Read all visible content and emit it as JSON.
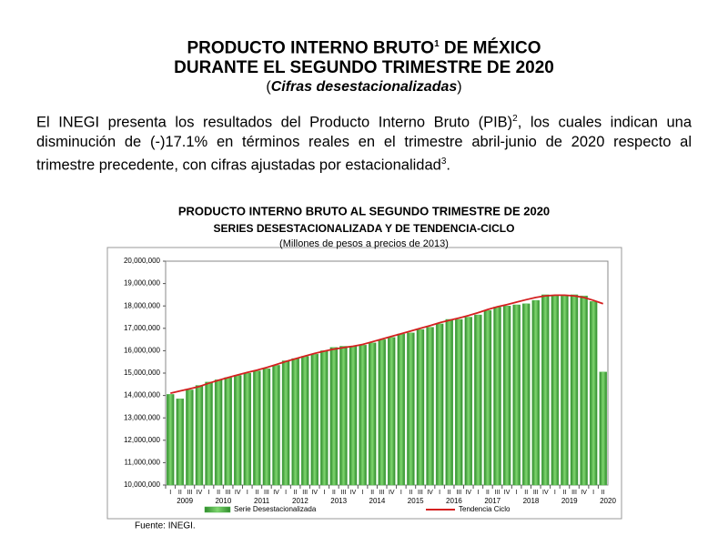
{
  "document": {
    "title_line1": "PRODUCTO INTERNO BRUTO",
    "title_sup": "1",
    "title_line1_end": " DE MÉXICO",
    "title_line2": "DURANTE EL SEGUNDO TRIMESTRE DE 2020",
    "subtitle_open": "(",
    "subtitle": "Cifras desestacionalizadas",
    "subtitle_close": ")",
    "paragraph_part1": "El INEGI presenta los resultados del Producto Interno Bruto (PIB)",
    "paragraph_sup1": "2",
    "paragraph_part2": ", los cuales indican una disminución de (-)17.1% en términos reales en el trimestre abril-junio de 2020 respecto al trimestre precedente, con cifras ajustadas por estacionalidad",
    "paragraph_sup2": "3",
    "paragraph_part3": ".",
    "source": "Fuente: INEGI."
  },
  "chart_data": {
    "type": "bar",
    "title": "PRODUCTO INTERNO BRUTO AL SEGUNDO TRIMESTRE DE 2020",
    "subtitle": "SERIES DESESTACIONALIZADA Y DE TENDENCIA-CICLO",
    "unit_label": "(Millones de pesos a precios de 2013)",
    "categories": [
      "I",
      "II",
      "III",
      "IV",
      "I",
      "II",
      "III",
      "IV",
      "I",
      "II",
      "III",
      "IV",
      "I",
      "II",
      "III",
      "IV",
      "I",
      "II",
      "III",
      "IV",
      "I",
      "II",
      "III",
      "IV",
      "I",
      "II",
      "III",
      "IV",
      "I",
      "II",
      "III",
      "IV",
      "I",
      "II",
      "III",
      "IV",
      "I",
      "II",
      "III",
      "IV",
      "I",
      "II",
      "III",
      "IV",
      "I",
      "II"
    ],
    "years": [
      "2009",
      "2010",
      "2011",
      "2012",
      "2013",
      "2014",
      "2015",
      "2016",
      "2017",
      "2018",
      "2019",
      "2020"
    ],
    "series": [
      {
        "name": "Serie Desestacionalizada",
        "color": "#4fb84a",
        "values": [
          14050000,
          13850000,
          14250000,
          14450000,
          14600000,
          14700000,
          14800000,
          14900000,
          15000000,
          15100000,
          15200000,
          15350000,
          15550000,
          15650000,
          15750000,
          15850000,
          16000000,
          16150000,
          16200000,
          16200000,
          16250000,
          16350000,
          16500000,
          16600000,
          16750000,
          16800000,
          16950000,
          17050000,
          17200000,
          17400000,
          17400000,
          17500000,
          17600000,
          17800000,
          17950000,
          18000000,
          18050000,
          18100000,
          18250000,
          18500000,
          18450000,
          18450000,
          18500000,
          18450000,
          18200000,
          15050000
        ]
      },
      {
        "name": "Tendencia Ciclo",
        "color": "#d42020",
        "values": [
          14100000,
          14200000,
          14300000,
          14400000,
          14550000,
          14680000,
          14800000,
          14920000,
          15030000,
          15130000,
          15250000,
          15380000,
          15520000,
          15640000,
          15760000,
          15880000,
          15980000,
          16070000,
          16140000,
          16200000,
          16280000,
          16400000,
          16520000,
          16640000,
          16760000,
          16880000,
          17000000,
          17120000,
          17250000,
          17360000,
          17460000,
          17570000,
          17700000,
          17840000,
          17960000,
          18060000,
          18170000,
          18280000,
          18380000,
          18450000,
          18480000,
          18480000,
          18450000,
          18380000,
          18250000,
          18100000
        ]
      }
    ],
    "ylim": [
      10000000,
      20000000
    ],
    "yticks": [
      {
        "value": 10000000,
        "label": "10,000,000"
      },
      {
        "value": 11000000,
        "label": "11,000,000"
      },
      {
        "value": 12000000,
        "label": "12,000,000"
      },
      {
        "value": 13000000,
        "label": "13,000,000"
      },
      {
        "value": 14000000,
        "label": "14,000,000"
      },
      {
        "value": 15000000,
        "label": "15,000,000"
      },
      {
        "value": 16000000,
        "label": "16,000,000"
      },
      {
        "value": 17000000,
        "label": "17,000,000"
      },
      {
        "value": 18000000,
        "label": "18,000,000"
      },
      {
        "value": 19000000,
        "label": "19,000,000"
      },
      {
        "value": 20000000,
        "label": "20,000,000"
      }
    ],
    "grid": false
  }
}
